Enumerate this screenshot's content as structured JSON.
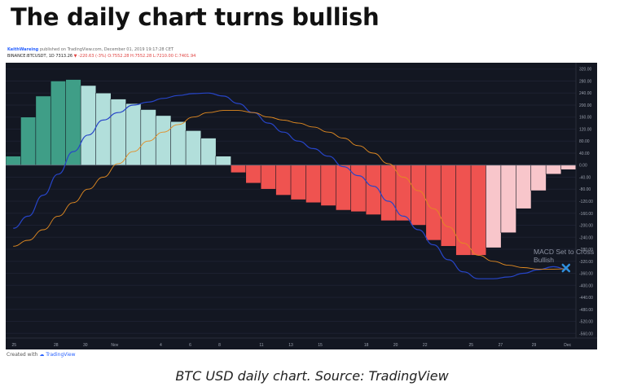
{
  "headline": "The daily chart turns bullish",
  "chart_header": {
    "author": "KeithWareing",
    "published": "published on TradingView.com, December 01, 2019 19:17:28 CET",
    "symbol": "BINANCE:BTCUSDT, 1D",
    "last": "7313.26",
    "change": "▼ -220.63 (-3%)",
    "ohlc": "O:7552.28  H:7552.28  L:7210.00  C:7401.94"
  },
  "annotation": {
    "line1": "MACD Set to Cross",
    "line2": "Bullish"
  },
  "credit": {
    "prefix": "Created with",
    "brand": "TradingView"
  },
  "caption": "BTC USD daily chart. Source: TradingView",
  "colors": {
    "background": "#131722",
    "macd_line": "#2745c8",
    "signal_line": "#e38b21",
    "hist_dark_green": "#3f9e87",
    "hist_light_green": "#b2dfdb",
    "hist_dark_red": "#ef5350",
    "hist_light_red": "#f8c6cb",
    "cross_marker": "#2f8fdd"
  },
  "chart_data": {
    "type": "bar",
    "title": "",
    "xlabel": "",
    "ylabel": "",
    "ylim": [
      -570,
      330
    ],
    "y_ticks": [
      "320.00",
      "280.00",
      "240.00",
      "200.00",
      "160.00",
      "120.00",
      "80.00",
      "40.00",
      "0.00",
      "-40.00",
      "-80.00",
      "-120.00",
      "-160.00",
      "-200.00",
      "-240.00",
      "-280.00",
      "-320.00",
      "-360.00",
      "-400.00",
      "-440.00",
      "-480.00",
      "-520.00",
      "-560.00"
    ],
    "x_ticks": [
      "25",
      "28",
      "30",
      "Nov",
      "4",
      "6",
      "8",
      "11",
      "13",
      "15",
      "18",
      "20",
      "22",
      "25",
      "27",
      "29",
      "Dec"
    ],
    "histogram": [
      {
        "value": 30,
        "shade": "dark_green"
      },
      {
        "value": 160,
        "shade": "dark_green"
      },
      {
        "value": 230,
        "shade": "dark_green"
      },
      {
        "value": 280,
        "shade": "dark_green"
      },
      {
        "value": 285,
        "shade": "dark_green"
      },
      {
        "value": 265,
        "shade": "light_green"
      },
      {
        "value": 240,
        "shade": "light_green"
      },
      {
        "value": 220,
        "shade": "light_green"
      },
      {
        "value": 205,
        "shade": "light_green"
      },
      {
        "value": 185,
        "shade": "light_green"
      },
      {
        "value": 165,
        "shade": "light_green"
      },
      {
        "value": 145,
        "shade": "light_green"
      },
      {
        "value": 115,
        "shade": "light_green"
      },
      {
        "value": 90,
        "shade": "light_green"
      },
      {
        "value": 30,
        "shade": "light_green"
      },
      {
        "value": -25,
        "shade": "dark_red"
      },
      {
        "value": -60,
        "shade": "dark_red"
      },
      {
        "value": -80,
        "shade": "dark_red"
      },
      {
        "value": -100,
        "shade": "dark_red"
      },
      {
        "value": -115,
        "shade": "dark_red"
      },
      {
        "value": -125,
        "shade": "dark_red"
      },
      {
        "value": -135,
        "shade": "dark_red"
      },
      {
        "value": -150,
        "shade": "dark_red"
      },
      {
        "value": -155,
        "shade": "dark_red"
      },
      {
        "value": -165,
        "shade": "dark_red"
      },
      {
        "value": -185,
        "shade": "dark_red"
      },
      {
        "value": -185,
        "shade": "dark_red"
      },
      {
        "value": -200,
        "shade": "dark_red"
      },
      {
        "value": -250,
        "shade": "dark_red"
      },
      {
        "value": -270,
        "shade": "dark_red"
      },
      {
        "value": -300,
        "shade": "dark_red"
      },
      {
        "value": -300,
        "shade": "dark_red"
      },
      {
        "value": -275,
        "shade": "light_red"
      },
      {
        "value": -225,
        "shade": "light_red"
      },
      {
        "value": -145,
        "shade": "light_red"
      },
      {
        "value": -85,
        "shade": "light_red"
      },
      {
        "value": -30,
        "shade": "light_red"
      },
      {
        "value": -15,
        "shade": "light_red"
      }
    ],
    "series": [
      {
        "values": [
          -210,
          -170,
          -100,
          -30,
          45,
          100,
          150,
          175,
          200,
          210,
          222,
          232,
          238,
          240,
          230,
          205,
          175,
          140,
          110,
          80,
          55,
          30,
          -5,
          -35,
          -70,
          -120,
          -170,
          -215,
          -265,
          -315,
          -355,
          -378,
          -378,
          -372,
          -360,
          -348,
          -338,
          -348
        ]
      },
      {
        "values": [
          -270,
          -250,
          -215,
          -170,
          -125,
          -80,
          -40,
          5,
          45,
          80,
          110,
          135,
          160,
          175,
          182,
          182,
          175,
          160,
          150,
          140,
          127,
          110,
          90,
          65,
          40,
          5,
          -40,
          -85,
          -145,
          -205,
          -260,
          -300,
          -320,
          -333,
          -341,
          -346,
          -346,
          -345
        ]
      }
    ]
  }
}
